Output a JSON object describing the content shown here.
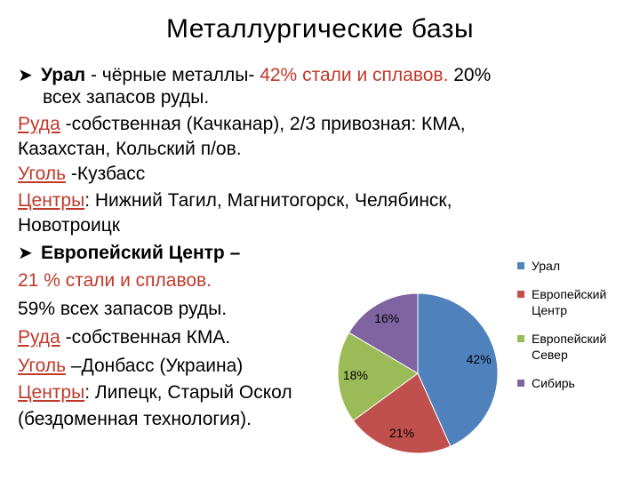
{
  "title": "Металлургические  базы",
  "ural": {
    "name": "Урал",
    "part1": " - чёрные  металлы- ",
    "share": "42%  стали  и  сплавов.",
    "part2": "  20%",
    "line2": "всех  запасов  руды.",
    "ore_label": "Руда",
    "ore_text": " -собственная (Качканар), 2/3 привозная:  КМА,",
    "ore_line2": "Казахстан, Кольский  п/ов.",
    "coal_label": "Уголь",
    "coal_text": " -Кузбасс",
    "centers_label": "Центры",
    "centers_text": ": Нижний  Тагил,  Магнитогорск,  Челябинск,",
    "centers_line2": "Новотроицк"
  },
  "europe": {
    "name": "Европейский  Центр –",
    "share": "21 %  стали  и  сплавов.",
    "ore_share": " 59%  всех  запасов  руды.",
    "ore_label": "Руда",
    "ore_text": "  -собственная  КМА.",
    "coal_label": "Уголь",
    "coal_text": " –Донбасс (Украина)",
    "centers_label": "Центры",
    "centers_text": ": Липецк, Старый Оскол",
    "note": "(бездоменная  технология)."
  },
  "chart_data": {
    "type": "pie",
    "categories": [
      "Урал",
      "Европейский Центр",
      "Европейский Север",
      "Сибирь"
    ],
    "values": [
      42,
      21,
      18,
      16
    ],
    "labels": [
      "42%",
      "21%",
      "18%",
      "16%"
    ],
    "colors": [
      "#4F81BD",
      "#C0504D",
      "#9BBB59",
      "#8064A2"
    ],
    "legend_position": "right"
  }
}
